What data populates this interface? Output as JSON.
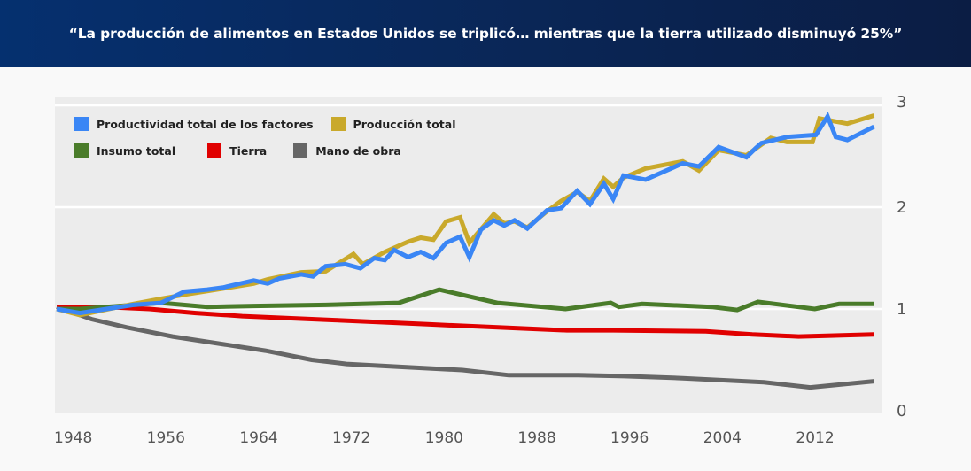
{
  "header": {
    "title": "“La producción de alimentos en Estados Unidos se triplicó… mientras que la tierra utilizado disminuyó 25%”",
    "background_colors": [
      "#05306f",
      "#0b1d44"
    ]
  },
  "chart_data": {
    "type": "line",
    "title": "“La producción de alimentos en Estados Unidos se triplicó… mientras que la tierra utilizado disminuyó 25%”",
    "xlabel": "",
    "ylabel": "",
    "xlim": [
      1948,
      2019
    ],
    "ylim": [
      0,
      3
    ],
    "x_ticks": [
      1948,
      1956,
      1964,
      1972,
      1980,
      1988,
      1996,
      2004,
      2012
    ],
    "x_tick_labels": [
      "1948",
      "1956",
      "1964",
      "1972",
      "1980",
      "1988",
      "1996",
      "2004",
      "2012"
    ],
    "y_ticks": [
      0,
      1,
      2,
      3
    ],
    "y_tick_labels": [
      "0",
      "1",
      "2",
      "3"
    ],
    "y_axis_side": "right",
    "grid": true,
    "legend_position": "top-left",
    "series": [
      {
        "name": "Productividad total de los factores",
        "color": "#3a86f5",
        "points": [
          [
            1948,
            1.0
          ],
          [
            1950,
            0.96
          ],
          [
            1954.6,
            1.04
          ],
          [
            1957,
            1.06
          ],
          [
            1959,
            1.17
          ],
          [
            1961,
            1.19
          ],
          [
            1962.3,
            1.21
          ],
          [
            1965,
            1.28
          ],
          [
            1966.2,
            1.25
          ],
          [
            1967.2,
            1.3
          ],
          [
            1969.1,
            1.34
          ],
          [
            1970.1,
            1.32
          ],
          [
            1971.2,
            1.42
          ],
          [
            1972.9,
            1.44
          ],
          [
            1974.2,
            1.4
          ],
          [
            1975.4,
            1.5
          ],
          [
            1976.3,
            1.48
          ],
          [
            1977.1,
            1.58
          ],
          [
            1978.3,
            1.51
          ],
          [
            1979.4,
            1.56
          ],
          [
            1980.5,
            1.5
          ],
          [
            1981.6,
            1.65
          ],
          [
            1982.8,
            1.71
          ],
          [
            1983.6,
            1.51
          ],
          [
            1984.6,
            1.78
          ],
          [
            1985.7,
            1.87
          ],
          [
            1986.6,
            1.82
          ],
          [
            1987.5,
            1.87
          ],
          [
            1988.6,
            1.79
          ],
          [
            1990.3,
            1.97
          ],
          [
            1991.5,
            1.99
          ],
          [
            1992.9,
            2.16
          ],
          [
            1994.0,
            2.03
          ],
          [
            1995.2,
            2.23
          ],
          [
            1996.0,
            2.08
          ],
          [
            1996.9,
            2.31
          ],
          [
            1998.8,
            2.27
          ],
          [
            2002.0,
            2.43
          ],
          [
            2003.4,
            2.4
          ],
          [
            2005.1,
            2.59
          ],
          [
            2007.5,
            2.49
          ],
          [
            2008.3,
            2.58
          ],
          [
            2008.8,
            2.63
          ],
          [
            2011.0,
            2.69
          ],
          [
            2013.5,
            2.71
          ],
          [
            2014.5,
            2.89
          ],
          [
            2015.2,
            2.69
          ],
          [
            2016.2,
            2.66
          ],
          [
            2018.5,
            2.79
          ]
        ]
      },
      {
        "name": "Producción total",
        "color": "#c9a92b",
        "points": [
          [
            1948,
            1.0
          ],
          [
            1950,
            0.94
          ],
          [
            1954.6,
            1.05
          ],
          [
            1957,
            1.1
          ],
          [
            1959,
            1.14
          ],
          [
            1962.3,
            1.2
          ],
          [
            1965,
            1.25
          ],
          [
            1966.2,
            1.29
          ],
          [
            1969.1,
            1.36
          ],
          [
            1971.2,
            1.37
          ],
          [
            1973.6,
            1.54
          ],
          [
            1974.4,
            1.44
          ],
          [
            1976.3,
            1.56
          ],
          [
            1978.3,
            1.66
          ],
          [
            1979.4,
            1.7
          ],
          [
            1980.5,
            1.68
          ],
          [
            1981.6,
            1.86
          ],
          [
            1982.8,
            1.9
          ],
          [
            1983.6,
            1.65
          ],
          [
            1985.7,
            1.93
          ],
          [
            1986.6,
            1.84
          ],
          [
            1987.5,
            1.86
          ],
          [
            1988.6,
            1.8
          ],
          [
            1990.3,
            1.96
          ],
          [
            1991.5,
            2.06
          ],
          [
            1992.9,
            2.15
          ],
          [
            1994.0,
            2.06
          ],
          [
            1995.2,
            2.28
          ],
          [
            1996.0,
            2.2
          ],
          [
            1996.9,
            2.29
          ],
          [
            1998.8,
            2.38
          ],
          [
            2002.0,
            2.45
          ],
          [
            2003.4,
            2.36
          ],
          [
            2005.1,
            2.56
          ],
          [
            2007.5,
            2.51
          ],
          [
            2009.6,
            2.68
          ],
          [
            2011.0,
            2.64
          ],
          [
            2013.2,
            2.64
          ],
          [
            2013.8,
            2.87
          ],
          [
            2016.2,
            2.82
          ],
          [
            2018.5,
            2.9
          ]
        ]
      },
      {
        "name": "Insumo total",
        "color": "#4a7c2a",
        "points": [
          [
            1948,
            1.0
          ],
          [
            1950,
            1.0
          ],
          [
            1957,
            1.06
          ],
          [
            1961,
            1.02
          ],
          [
            1965,
            1.03
          ],
          [
            1971.2,
            1.04
          ],
          [
            1977.5,
            1.06
          ],
          [
            1981.0,
            1.19
          ],
          [
            1986.0,
            1.06
          ],
          [
            1991.9,
            1.0
          ],
          [
            1995.8,
            1.06
          ],
          [
            1996.5,
            1.02
          ],
          [
            1998.5,
            1.05
          ],
          [
            2004.5,
            1.02
          ],
          [
            2006.7,
            0.99
          ],
          [
            2008.5,
            1.07
          ],
          [
            2013.4,
            1.0
          ],
          [
            2015.5,
            1.05
          ],
          [
            2018.5,
            1.05
          ]
        ]
      },
      {
        "name": "Tierra",
        "color": "#e00000",
        "points": [
          [
            1948,
            1.02
          ],
          [
            1952,
            1.02
          ],
          [
            1956,
            1.0
          ],
          [
            1960,
            0.96
          ],
          [
            1964,
            0.93
          ],
          [
            1972,
            0.89
          ],
          [
            1980,
            0.85
          ],
          [
            1988,
            0.81
          ],
          [
            1992,
            0.79
          ],
          [
            1996,
            0.79
          ],
          [
            2004,
            0.78
          ],
          [
            2008,
            0.75
          ],
          [
            2012,
            0.73
          ],
          [
            2018.5,
            0.75
          ]
        ]
      },
      {
        "name": "Mano de obra",
        "color": "#666666",
        "points": [
          [
            1948,
            1.02
          ],
          [
            1951,
            0.9
          ],
          [
            1954,
            0.82
          ],
          [
            1958,
            0.73
          ],
          [
            1962,
            0.66
          ],
          [
            1966,
            0.59
          ],
          [
            1970,
            0.5
          ],
          [
            1973,
            0.46
          ],
          [
            1978,
            0.43
          ],
          [
            1983,
            0.4
          ],
          [
            1987,
            0.35
          ],
          [
            1993,
            0.35
          ],
          [
            1997,
            0.34
          ],
          [
            2002,
            0.32
          ],
          [
            2009,
            0.28
          ],
          [
            2013,
            0.23
          ],
          [
            2018.5,
            0.29
          ]
        ]
      }
    ]
  }
}
